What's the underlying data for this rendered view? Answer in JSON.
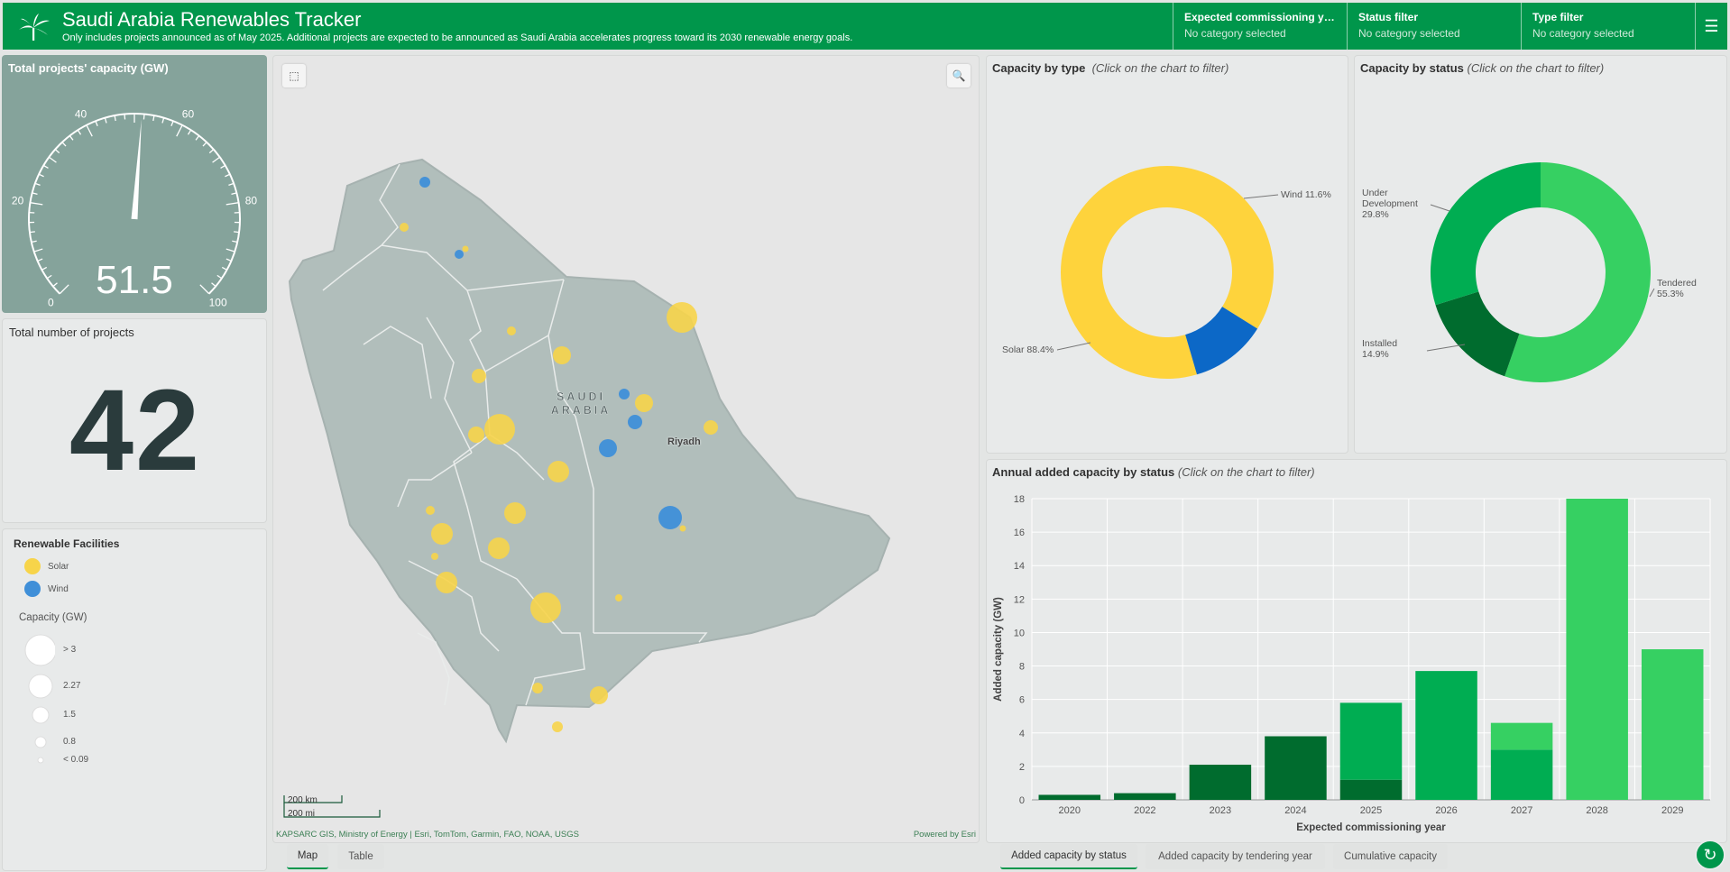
{
  "header": {
    "title": "Saudi Arabia Renewables Tracker",
    "subtitle": "Only includes projects announced as of May 2025. Additional projects are expected to be announced as Saudi Arabia accelerates progress toward its 2030 renewable energy goals.",
    "brand_color": "#00964b",
    "filters": [
      {
        "label": "Expected commissioning yea...",
        "value": "No category selected"
      },
      {
        "label": "Status filter",
        "value": "No category selected"
      },
      {
        "label": "Type filter",
        "value": "No category selected"
      }
    ],
    "menu_icon": "hamburger-menu-icon"
  },
  "gauge": {
    "title": "Total projects' capacity (GW)",
    "value": 51.5,
    "value_text": "51.5",
    "min": 0,
    "max": 100,
    "tick_labels": [
      "0",
      "20",
      "40",
      "60",
      "80",
      "100"
    ]
  },
  "count": {
    "title": "Total number of projects",
    "value": "42"
  },
  "legend": {
    "title": "Renewable Facilities",
    "types": [
      {
        "label": "Solar",
        "color": "#f7d44a"
      },
      {
        "label": "Wind",
        "color": "#3f8fd8"
      }
    ],
    "capacity_title": "Capacity (GW)",
    "sizes": [
      "> 3",
      "2.27",
      "1.5",
      "0.8",
      "< 0.09"
    ]
  },
  "map": {
    "country_label": "SAUDI ARABIA",
    "country_line1": "SAUDI",
    "country_line2": "ARABIA",
    "city_label": "Riyadh",
    "scale_km": "200 km",
    "scale_mi": "200 mi",
    "attribution": "KAPSARC GIS, Ministry of Energy | Esri, TomTom, Garmin, FAO, NOAA, USGS",
    "powered_by": "Powered by Esri",
    "tools": [
      "select-tool-icon",
      "search-icon"
    ]
  },
  "map_tabs": [
    "Map",
    "Table"
  ],
  "type_chart": {
    "title": "Capacity by type",
    "hint": "(Click on the chart to filter)"
  },
  "status_chart": {
    "title": "Capacity by status",
    "hint": "(Click on the chart to filter)"
  },
  "bar_chart": {
    "title": "Annual added capacity by status",
    "hint": "(Click on the chart to filter)"
  },
  "chart_tabs": [
    "Added capacity by status",
    "Added capacity by tendering year",
    "Cumulative capacity"
  ],
  "chart_data": [
    {
      "type": "pie",
      "title": "Capacity by type",
      "donut": true,
      "slices": [
        {
          "label": "Solar",
          "value": 88.4,
          "text": "Solar 88.4%",
          "color": "#fed33c"
        },
        {
          "label": "Wind",
          "value": 11.6,
          "text": "Wind 11.6%",
          "color": "#0c68c7"
        }
      ]
    },
    {
      "type": "pie",
      "title": "Capacity by status",
      "donut": true,
      "slices": [
        {
          "label": "Tendered",
          "value": 55.3,
          "text_line1": "Tendered",
          "text_line2": "55.3%",
          "color": "#36d062"
        },
        {
          "label": "Installed",
          "value": 14.9,
          "text_line1": "Installed",
          "text_line2": "14.9%",
          "color": "#006c2e"
        },
        {
          "label": "Under Development",
          "value": 29.8,
          "text_line1": "Under",
          "text_line2": "Development",
          "text_line3": "29.8%",
          "color": "#00ad52"
        }
      ]
    },
    {
      "type": "bar",
      "stacked": true,
      "title": "Annual added capacity by status",
      "xlabel": "Expected commissioning year",
      "ylabel": "Added capacity (GW)",
      "ylim": [
        0,
        18
      ],
      "yticks": [
        0,
        2,
        4,
        6,
        8,
        10,
        12,
        14,
        16,
        18
      ],
      "grid": true,
      "categories": [
        "2020",
        "2022",
        "2023",
        "2024",
        "2025",
        "2026",
        "2027",
        "2028",
        "2029"
      ],
      "series": [
        {
          "name": "Installed",
          "color": "#006c2e",
          "values": [
            0.3,
            0.4,
            2.1,
            3.8,
            1.2,
            0,
            0,
            0,
            0
          ]
        },
        {
          "name": "Under Development",
          "color": "#00ad52",
          "values": [
            0,
            0,
            0,
            0,
            4.6,
            7.7,
            3.0,
            0,
            0
          ]
        },
        {
          "name": "Tendered",
          "color": "#36d062",
          "values": [
            0,
            0,
            0,
            0,
            0,
            0,
            1.6,
            18.0,
            9.0
          ]
        }
      ]
    }
  ]
}
